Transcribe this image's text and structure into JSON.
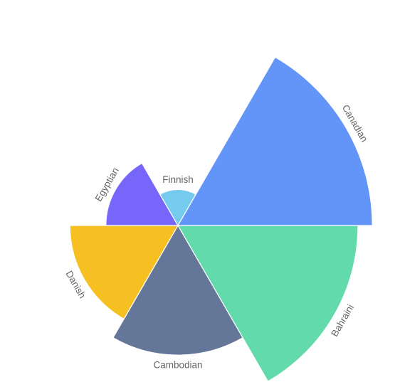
{
  "chart_data": {
    "type": "nightingale-rose",
    "categories": [
      "Bahraini",
      "Cambodian",
      "Danish",
      "Egyptian",
      "Finnish",
      "Canadian"
    ],
    "values": [
      100,
      72,
      60,
      40,
      20,
      108
    ],
    "colors": [
      "#62DAAB",
      "#657798",
      "#F6C022",
      "#7666F9",
      "#74CBED",
      "#6395F9"
    ],
    "start_angle_deg": 0,
    "direction": "clockwise",
    "legend": false
  }
}
